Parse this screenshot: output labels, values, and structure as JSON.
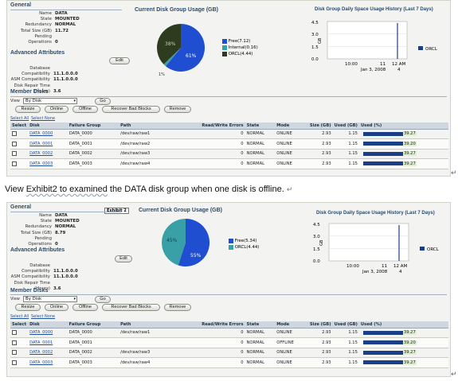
{
  "caption": {
    "pre": "View ",
    "underlined": "Exhibit2 to examined",
    "post": " the DATA disk group when one disk is offline. ",
    "arrow": "↵"
  },
  "return_mark": "↵",
  "screens": [
    {
      "sections": {
        "general": "General",
        "usage": "Current Disk Group Usage (GB)",
        "history": "Disk Group Daily Space Usage History (Last 7 Days)",
        "advanced": "Advanced Attributes",
        "member": "Member Disks"
      },
      "general": [
        [
          "Name",
          "DATA"
        ],
        [
          "State",
          "MOUNTED"
        ],
        [
          "Redundancy",
          "NORMAL"
        ],
        [
          "Total Size (GB)",
          "11.72"
        ],
        [
          "Pending Operations",
          "0"
        ]
      ],
      "advanced": [
        [
          "Database Compatibility",
          "11.1.0.0.0"
        ],
        [
          "ASM Compatibility",
          "11.1.0.0.0"
        ],
        [
          "Disk Repair Time (Hours)",
          "3.6"
        ]
      ],
      "edit_label": "Edit",
      "pie": {
        "labels": {
          "big": "61%",
          "small": "38%",
          "tiny": "1%"
        },
        "legend": [
          "Free(7.12)",
          "Internal(0.16)",
          "ORCL(4.44)"
        ],
        "colors": [
          "#1f4fd0",
          "#3aa0a8",
          "#2f3b1e"
        ],
        "values": [
          7.12,
          0.16,
          4.44
        ]
      },
      "history": {
        "y_ticks": [
          "4.5",
          "3.0",
          "1.5",
          "0.0"
        ],
        "x_ticks": [
          "10:00",
          "11",
          "12 AM"
        ],
        "x_sub": "Jan 3, 2008",
        "x_sub2": "4",
        "y_unit": "GB",
        "legend": "ORCL"
      },
      "view_label": "View",
      "view_value": "By Disk",
      "go": "Go",
      "actions": [
        "Resize",
        "Online",
        "Offline",
        "Recover Bad Blocks",
        "Remove"
      ],
      "select_all": "Select All",
      "select_none": "Select None",
      "columns": [
        "Select",
        "Disk",
        "Failure Group",
        "Path",
        "Read/Write Errors",
        "State",
        "Mode",
        "Size (GB)",
        "Used (GB)",
        "Used (%)"
      ],
      "rows": [
        {
          "disk": "DATA_0000",
          "fg": "DATA_0000",
          "path": "/dev/raw/raw1",
          "err": "0",
          "state": "NORMAL",
          "mode": "ONLINE",
          "size": "2.93",
          "used": "1.15",
          "pct": "39.27"
        },
        {
          "disk": "DATA_0001",
          "fg": "DATA_0001",
          "path": "/dev/raw/raw2",
          "err": "0",
          "state": "NORMAL",
          "mode": "ONLINE",
          "size": "2.93",
          "used": "1.15",
          "pct": "39.20"
        },
        {
          "disk": "DATA_0002",
          "fg": "DATA_0002",
          "path": "/dev/raw/raw3",
          "err": "0",
          "state": "NORMAL",
          "mode": "ONLINE",
          "size": "2.93",
          "used": "1.15",
          "pct": "39.27"
        },
        {
          "disk": "DATA_0003",
          "fg": "DATA_0003",
          "path": "/dev/raw/raw4",
          "err": "0",
          "state": "NORMAL",
          "mode": "ONLINE",
          "size": "2.93",
          "used": "1.15",
          "pct": "39.27"
        }
      ]
    },
    {
      "sections": {
        "general": "General",
        "usage": "Current Disk Group Usage (GB)",
        "history": "Disk Group Daily Space Usage History (Last 7 Days)",
        "advanced": "Advanced Attributes",
        "member": "Member Disks"
      },
      "tooltip": "Exhibit 2",
      "general": [
        [
          "Name",
          "DATA"
        ],
        [
          "State",
          "MOUNTED"
        ],
        [
          "Redundancy",
          "NORMAL"
        ],
        [
          "Total Size (GB)",
          "8.79"
        ],
        [
          "Pending Operations",
          "0"
        ]
      ],
      "advanced": [
        [
          "Database Compatibility",
          "11.1.0.0.0"
        ],
        [
          "ASM Compatibility",
          "11.1.0.0.0"
        ],
        [
          "Disk Repair Time (Hours)",
          "3.6"
        ]
      ],
      "edit_label": "Edit",
      "pie": {
        "labels": {
          "big": "55%",
          "small": "45%"
        },
        "legend": [
          "Free(5.34)",
          "ORCL(4.44)"
        ],
        "colors": [
          "#1f4fd0",
          "#3aa0a8"
        ],
        "values": [
          5.34,
          4.44
        ]
      },
      "history": {
        "y_ticks": [
          "4.5",
          "3.0",
          "1.5",
          "0.0"
        ],
        "x_ticks": [
          "10:00",
          "11",
          "12 AM"
        ],
        "x_sub": "Jan 3, 2008",
        "x_sub2": "4",
        "y_unit": "GB",
        "legend": "ORCL"
      },
      "view_label": "View",
      "view_value": "By Disk",
      "go": "Go",
      "actions": [
        "Resize",
        "Online",
        "Offline",
        "Recover Bad Blocks",
        "Remove"
      ],
      "select_all": "Select All",
      "select_none": "Select None",
      "columns": [
        "Select",
        "Disk",
        "Failure Group",
        "Path",
        "Read/Write Errors",
        "State",
        "Mode",
        "Size (GB)",
        "Used (GB)",
        "Used (%)"
      ],
      "rows": [
        {
          "disk": "DATA_0000",
          "fg": "DATA_0000",
          "path": "/dev/raw/raw1",
          "err": "0",
          "state": "NORMAL",
          "mode": "ONLINE",
          "size": "2.93",
          "used": "1.15",
          "pct": "39.27"
        },
        {
          "disk": "DATA_0001",
          "fg": "DATA_0001",
          "path": "",
          "err": "0",
          "state": "NORMAL",
          "mode": "OFFLINE",
          "size": "2.93",
          "used": "1.15",
          "pct": "39.20"
        },
        {
          "disk": "DATA_0002",
          "fg": "DATA_0002",
          "path": "/dev/raw/raw3",
          "err": "0",
          "state": "NORMAL",
          "mode": "ONLINE",
          "size": "2.93",
          "used": "1.15",
          "pct": "39.27"
        },
        {
          "disk": "DATA_0003",
          "fg": "DATA_0003",
          "path": "/dev/raw/raw4",
          "err": "0",
          "state": "NORMAL",
          "mode": "ONLINE",
          "size": "2.93",
          "used": "1.15",
          "pct": "39.27"
        }
      ]
    }
  ]
}
